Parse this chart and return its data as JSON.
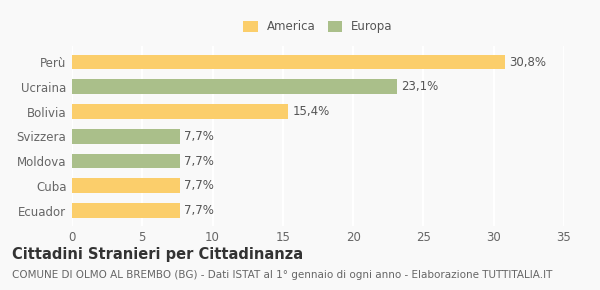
{
  "categories": [
    "Ecuador",
    "Cuba",
    "Moldova",
    "Svizzera",
    "Bolivia",
    "Ucraina",
    "Perù"
  ],
  "values": [
    7.7,
    7.7,
    7.7,
    7.7,
    15.4,
    23.1,
    30.8
  ],
  "labels": [
    "7,7%",
    "7,7%",
    "7,7%",
    "7,7%",
    "15,4%",
    "23,1%",
    "30,8%"
  ],
  "colors": [
    "#FBCE6B",
    "#FBCE6B",
    "#AABF8A",
    "#AABF8A",
    "#FBCE6B",
    "#AABF8A",
    "#FBCE6B"
  ],
  "legend": [
    {
      "label": "America",
      "color": "#FBCE6B"
    },
    {
      "label": "Europa",
      "color": "#AABF8A"
    }
  ],
  "xlim": [
    0,
    35
  ],
  "xticks": [
    0,
    5,
    10,
    15,
    20,
    25,
    30,
    35
  ],
  "title": "Cittadini Stranieri per Cittadinanza",
  "subtitle": "COMUNE DI OLMO AL BREMBO (BG) - Dati ISTAT al 1° gennaio di ogni anno - Elaborazione TUTTITALIA.IT",
  "background_color": "#f9f9f9",
  "bar_height": 0.6,
  "grid_color": "#ffffff",
  "label_fontsize": 8.5,
  "tick_fontsize": 8.5,
  "title_fontsize": 10.5,
  "subtitle_fontsize": 7.5
}
